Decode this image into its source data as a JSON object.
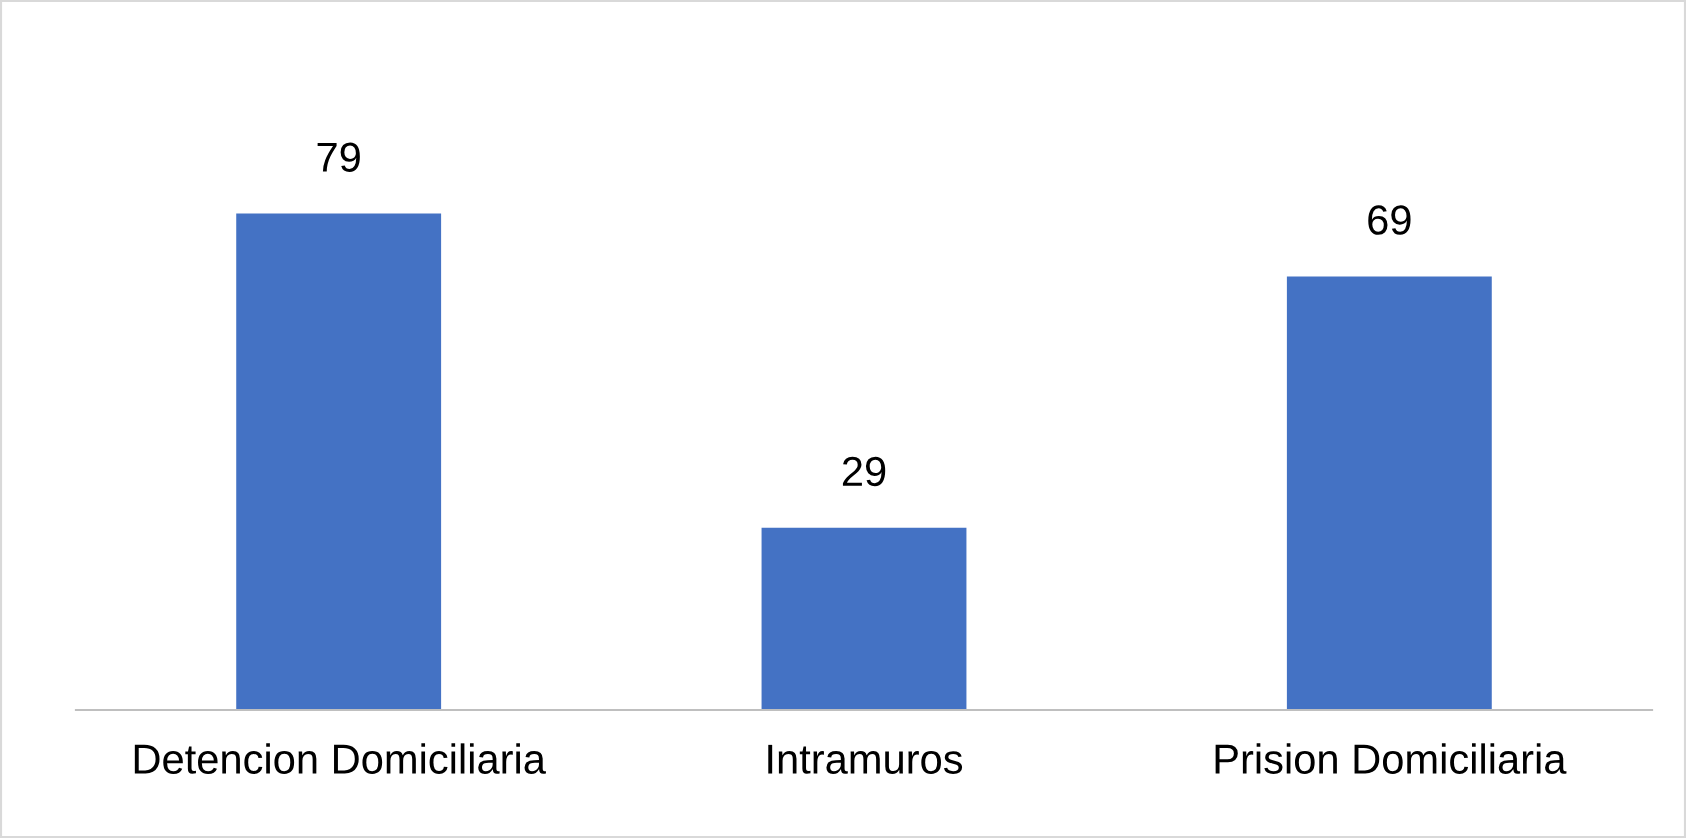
{
  "chart_data": {
    "type": "bar",
    "categories": [
      "Detencion Domiciliaria",
      "Intramuros",
      "Prision Domiciliaria"
    ],
    "values": [
      79,
      29,
      69
    ],
    "color": "#4472c4",
    "data_labels": true,
    "grid": false,
    "legend": false
  }
}
